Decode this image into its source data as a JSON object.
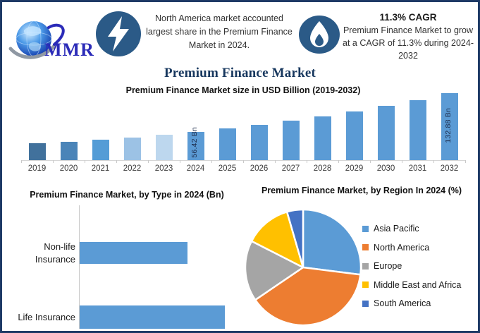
{
  "brand": {
    "name": "MMR"
  },
  "header": {
    "badge_color": "#2B5A87",
    "note_left": "North America market accounted largest share in the Premium Finance Market in 2024.",
    "cagr_heading": "11.3% CAGR",
    "cagr_note": "Premium Finance Market to grow at a CAGR of 11.3% during 2024-2032"
  },
  "page_title": "Premium Finance Market",
  "chart_data": [
    {
      "type": "bar",
      "title": "Premium Finance Market size in USD Billion (2019-2032)",
      "xlabel": "",
      "ylabel": "USD Billion",
      "ylim": [
        0,
        140
      ],
      "gridlines": false,
      "categories": [
        "2019",
        "2020",
        "2021",
        "2022",
        "2023",
        "2024",
        "2025",
        "2026",
        "2027",
        "2028",
        "2029",
        "2030",
        "2031",
        "2032"
      ],
      "values": [
        33.0,
        36.8,
        40.9,
        45.5,
        50.6,
        56.42,
        62.8,
        69.9,
        77.8,
        86.6,
        96.4,
        107.3,
        119.4,
        132.88
      ],
      "labeled_points": [
        {
          "category": "2024",
          "label": "56.42 Bn"
        },
        {
          "category": "2032",
          "label": "132.88 Bn"
        }
      ],
      "bar_colors": [
        "#41719C",
        "#4A84B8",
        "#549CD6",
        "#9CC2E5",
        "#BDD7EE",
        "#5B9BD5",
        "#5B9BD5",
        "#5B9BD5",
        "#5B9BD5",
        "#5B9BD5",
        "#5B9BD5",
        "#5B9BD5",
        "#5B9BD5",
        "#5B9BD5"
      ]
    },
    {
      "type": "bar",
      "orientation": "horizontal",
      "title": "Premium Finance Market, by Type in 2024 (Bn)",
      "categories": [
        "Non-life Insurance",
        "Life Insurance"
      ],
      "values": [
        24.0,
        32.4
      ],
      "xlim": [
        0,
        35
      ],
      "gridlines": false,
      "bar_color": "#5B9BD5"
    },
    {
      "type": "pie",
      "title": "Premium Finance Market, by Region In 2024 (%)",
      "labels": [
        "Asia Pacific",
        "North America",
        "Europe",
        "Middle East and Africa",
        "South America"
      ],
      "values": [
        27,
        38.5,
        17,
        13,
        4.5
      ],
      "colors": [
        "#5B9BD5",
        "#ED7D31",
        "#A5A5A5",
        "#FFC000",
        "#4472C4"
      ],
      "legend_position": "right"
    }
  ]
}
